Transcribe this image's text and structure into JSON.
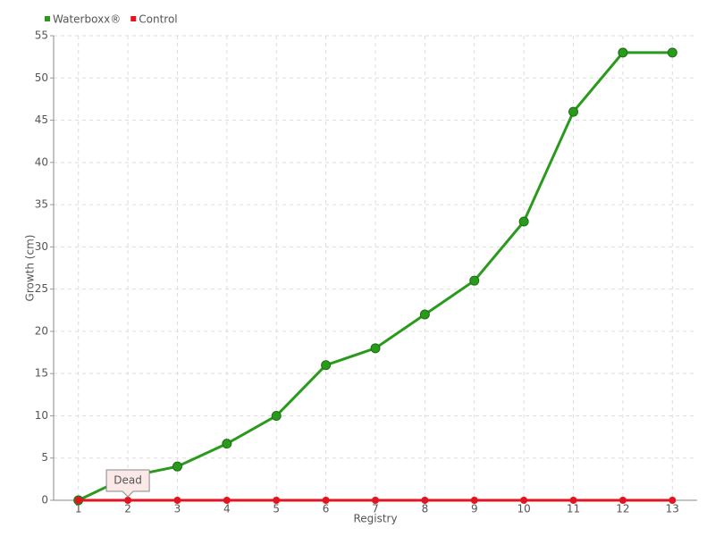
{
  "chart_data": {
    "type": "line",
    "x_label": "Registry",
    "y_label": "Growth (cm)",
    "categories": [
      "1",
      "2",
      "3",
      "4",
      "5",
      "6",
      "7",
      "8",
      "9",
      "10",
      "11",
      "12",
      "13"
    ],
    "series": [
      {
        "name": "Waterboxx®",
        "color": "#2a9a1c",
        "values": [
          0,
          2.8,
          4,
          6.7,
          10,
          16,
          18,
          22,
          26,
          33,
          46,
          53,
          53
        ]
      },
      {
        "name": "Control",
        "color": "#e3141f",
        "values": [
          0,
          0,
          0,
          0,
          0,
          0,
          0,
          0,
          0,
          0,
          0,
          0,
          0
        ]
      }
    ],
    "annotations": [
      {
        "text": "Dead",
        "category": "2"
      }
    ],
    "ylim": [
      0,
      55
    ],
    "yticks": [
      0,
      5,
      10,
      15,
      20,
      25,
      30,
      35,
      40,
      45,
      50,
      55
    ],
    "grid": true,
    "legend": "top-left"
  }
}
